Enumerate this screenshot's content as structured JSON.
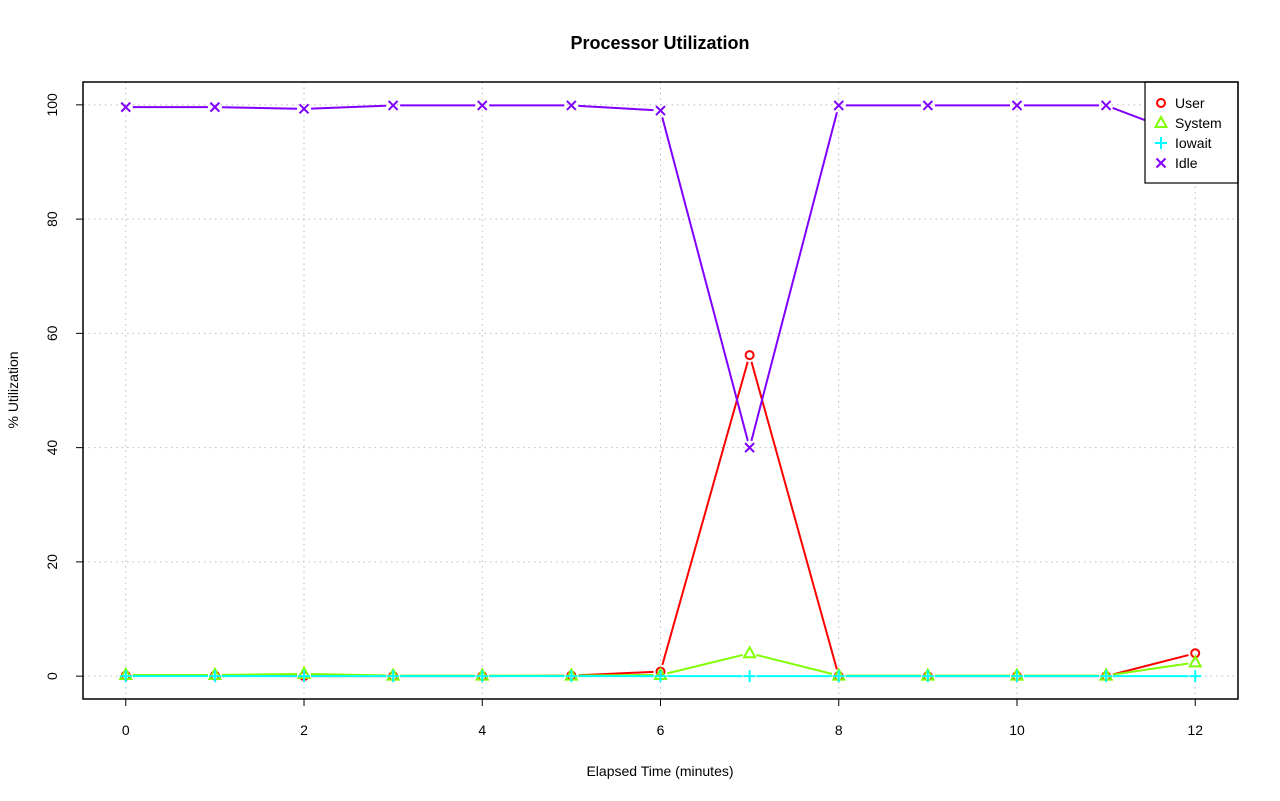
{
  "chart_data": {
    "type": "line",
    "title": "Processor Utilization",
    "xlabel": "Elapsed Time (minutes)",
    "ylabel": "% Utilization",
    "xlim": [
      -0.48,
      12.48
    ],
    "ylim": [
      -4,
      104
    ],
    "xticks": [
      0,
      2,
      4,
      6,
      8,
      10,
      12
    ],
    "yticks": [
      0,
      20,
      40,
      60,
      80,
      100
    ],
    "grid": true,
    "legend_position": "top-right",
    "x": [
      0,
      1,
      2,
      3,
      4,
      5,
      6,
      7,
      8,
      9,
      10,
      11,
      12
    ],
    "series": [
      {
        "name": "User",
        "color": "#ff0000",
        "marker": "circle",
        "values": [
          0.1,
          0.1,
          0.0,
          0.0,
          0.0,
          0.1,
          0.8,
          56.2,
          0.0,
          0.0,
          0.0,
          0.0,
          4.0
        ]
      },
      {
        "name": "System",
        "color": "#80ff00",
        "marker": "triangle",
        "values": [
          0.2,
          0.2,
          0.4,
          0.1,
          0.1,
          0.1,
          0.2,
          4.0,
          0.1,
          0.1,
          0.1,
          0.1,
          2.4
        ]
      },
      {
        "name": "Iowait",
        "color": "#00ffff",
        "marker": "plus",
        "values": [
          0,
          0,
          0,
          0,
          0,
          0,
          0,
          0,
          0,
          0,
          0,
          0,
          0
        ]
      },
      {
        "name": "Idle",
        "color": "#8000ff",
        "marker": "cross",
        "values": [
          99.6,
          99.6,
          99.3,
          99.9,
          99.9,
          99.9,
          99.0,
          40.0,
          99.9,
          99.9,
          99.9,
          99.9,
          94.0
        ]
      }
    ]
  }
}
